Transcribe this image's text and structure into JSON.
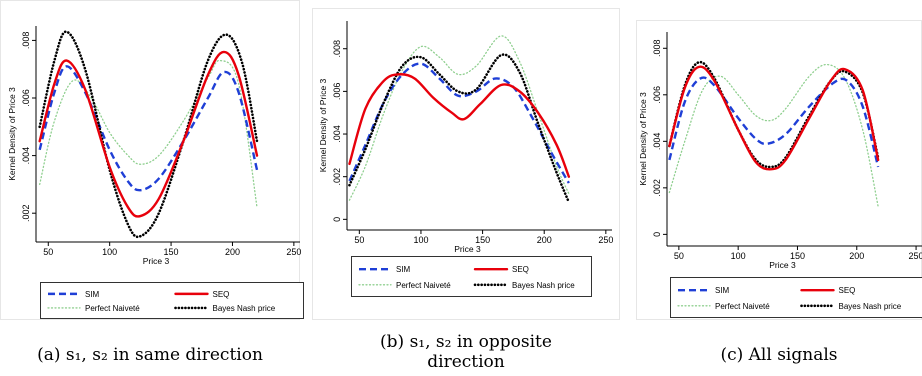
{
  "chart_data": [
    {
      "type": "line",
      "caption_lines": [
        "(a) s₁, s₂ in same direction"
      ],
      "xlabel": "Price 3",
      "ylabel": "Kernel Density of Price 3",
      "xlim": [
        40,
        255
      ],
      "ylim": [
        0.001,
        0.0085
      ],
      "xticks": [
        "50",
        "100",
        "150",
        "200",
        "250"
      ],
      "yticks": [
        ".002",
        ".004",
        ".006",
        ".008"
      ],
      "legend_position": "bottom",
      "series": [
        {
          "name": "SIM",
          "color": "#1f3fd6",
          "style": "dash",
          "points": [
            [
              43,
              0.0042
            ],
            [
              55,
              0.0062
            ],
            [
              65,
              0.0071
            ],
            [
              80,
              0.0062
            ],
            [
              100,
              0.0042
            ],
            [
              115,
              0.0031
            ],
            [
              125,
              0.0028
            ],
            [
              140,
              0.0032
            ],
            [
              160,
              0.0045
            ],
            [
              180,
              0.006
            ],
            [
              193,
              0.0069
            ],
            [
              205,
              0.0062
            ],
            [
              220,
              0.0035
            ]
          ]
        },
        {
          "name": "SEQ",
          "color": "#e8000b",
          "style": "solid",
          "points": [
            [
              43,
              0.0045
            ],
            [
              55,
              0.0065
            ],
            [
              65,
              0.0073
            ],
            [
              80,
              0.0063
            ],
            [
              100,
              0.0036
            ],
            [
              115,
              0.0022
            ],
            [
              125,
              0.0019
            ],
            [
              140,
              0.0025
            ],
            [
              160,
              0.0045
            ],
            [
              180,
              0.0068
            ],
            [
              193,
              0.0076
            ],
            [
              205,
              0.0068
            ],
            [
              220,
              0.004
            ]
          ]
        },
        {
          "name": "Perfect Naiveté",
          "color": "#8fcf8f",
          "style": "dot",
          "points": [
            [
              43,
              0.003
            ],
            [
              55,
              0.0052
            ],
            [
              70,
              0.0066
            ],
            [
              85,
              0.006
            ],
            [
              100,
              0.0048
            ],
            [
              115,
              0.004
            ],
            [
              125,
              0.0037
            ],
            [
              140,
              0.004
            ],
            [
              160,
              0.0052
            ],
            [
              180,
              0.0067
            ],
            [
              190,
              0.0073
            ],
            [
              205,
              0.0065
            ],
            [
              220,
              0.0022
            ]
          ]
        },
        {
          "name": "Bayes Nash price",
          "color": "#000000",
          "style": "densedot",
          "points": [
            [
              43,
              0.005
            ],
            [
              55,
              0.0073
            ],
            [
              65,
              0.0083
            ],
            [
              80,
              0.007
            ],
            [
              100,
              0.0035
            ],
            [
              115,
              0.0016
            ],
            [
              125,
              0.0012
            ],
            [
              140,
              0.002
            ],
            [
              160,
              0.0045
            ],
            [
              180,
              0.0073
            ],
            [
              195,
              0.0082
            ],
            [
              208,
              0.0072
            ],
            [
              220,
              0.0045
            ]
          ]
        }
      ]
    },
    {
      "type": "line",
      "caption_lines": [
        "(b) s₁, s₂ in opposite",
        "direction"
      ],
      "xlabel": "Price 3",
      "ylabel": "Kernel Density of Price 3",
      "xlim": [
        40,
        255
      ],
      "ylim": [
        -0.0005,
        0.0093
      ],
      "xticks": [
        "50",
        "100",
        "150",
        "200",
        "250"
      ],
      "yticks": [
        "0",
        ".002",
        ".004",
        ".006",
        ".008"
      ],
      "legend_position": "bottom",
      "series": [
        {
          "name": "SIM",
          "color": "#1f3fd6",
          "style": "dash",
          "points": [
            [
              42,
              0.0018
            ],
            [
              55,
              0.0035
            ],
            [
              70,
              0.0055
            ],
            [
              85,
              0.0068
            ],
            [
              100,
              0.0073
            ],
            [
              115,
              0.0066
            ],
            [
              130,
              0.0058
            ],
            [
              145,
              0.006
            ],
            [
              160,
              0.0066
            ],
            [
              175,
              0.0062
            ],
            [
              190,
              0.0048
            ],
            [
              205,
              0.0032
            ],
            [
              220,
              0.0017
            ]
          ]
        },
        {
          "name": "SEQ",
          "color": "#e8000b",
          "style": "solid",
          "points": [
            [
              42,
              0.0026
            ],
            [
              55,
              0.0052
            ],
            [
              70,
              0.0065
            ],
            [
              82,
              0.0068
            ],
            [
              95,
              0.0066
            ],
            [
              110,
              0.0057
            ],
            [
              125,
              0.005
            ],
            [
              135,
              0.0047
            ],
            [
              148,
              0.0054
            ],
            [
              165,
              0.0063
            ],
            [
              180,
              0.006
            ],
            [
              195,
              0.005
            ],
            [
              210,
              0.0035
            ],
            [
              220,
              0.002
            ]
          ]
        },
        {
          "name": "Perfect Naiveté",
          "color": "#8fcf8f",
          "style": "dot",
          "points": [
            [
              42,
              0.0009
            ],
            [
              55,
              0.0025
            ],
            [
              70,
              0.005
            ],
            [
              85,
              0.007
            ],
            [
              100,
              0.0081
            ],
            [
              115,
              0.0076
            ],
            [
              130,
              0.0068
            ],
            [
              145,
              0.0072
            ],
            [
              165,
              0.0086
            ],
            [
              180,
              0.0074
            ],
            [
              195,
              0.005
            ],
            [
              210,
              0.0025
            ],
            [
              220,
              0.0012
            ]
          ]
        },
        {
          "name": "Bayes Nash price",
          "color": "#000000",
          "style": "densedot",
          "points": [
            [
              42,
              0.0016
            ],
            [
              55,
              0.0033
            ],
            [
              70,
              0.0055
            ],
            [
              85,
              0.0072
            ],
            [
              100,
              0.0076
            ],
            [
              115,
              0.0068
            ],
            [
              130,
              0.006
            ],
            [
              145,
              0.0061
            ],
            [
              165,
              0.0077
            ],
            [
              180,
              0.0069
            ],
            [
              195,
              0.0045
            ],
            [
              210,
              0.0022
            ],
            [
              220,
              0.0008
            ]
          ]
        }
      ]
    },
    {
      "type": "line",
      "caption_lines": [
        "(c) All signals"
      ],
      "xlabel": "Price 3",
      "ylabel": "Kernel Density of Price 3",
      "xlim": [
        40,
        255
      ],
      "ylim": [
        -0.0005,
        0.0087
      ],
      "xticks": [
        "50",
        "100",
        "150",
        "200",
        "250"
      ],
      "yticks": [
        "0",
        ".002",
        ".004",
        ".006",
        ".008"
      ],
      "legend_position": "bottom",
      "series": [
        {
          "name": "SIM",
          "color": "#1f3fd6",
          "style": "dash",
          "points": [
            [
              42,
              0.0032
            ],
            [
              55,
              0.0057
            ],
            [
              68,
              0.0067
            ],
            [
              80,
              0.0064
            ],
            [
              100,
              0.005
            ],
            [
              115,
              0.0041
            ],
            [
              125,
              0.0039
            ],
            [
              140,
              0.0043
            ],
            [
              160,
              0.0055
            ],
            [
              180,
              0.0065
            ],
            [
              192,
              0.0066
            ],
            [
              205,
              0.0055
            ],
            [
              218,
              0.0029
            ]
          ]
        },
        {
          "name": "SEQ",
          "color": "#e8000b",
          "style": "solid",
          "points": [
            [
              42,
              0.0038
            ],
            [
              55,
              0.0063
            ],
            [
              67,
              0.0072
            ],
            [
              80,
              0.0066
            ],
            [
              100,
              0.0045
            ],
            [
              115,
              0.0031
            ],
            [
              128,
              0.0028
            ],
            [
              140,
              0.0032
            ],
            [
              160,
              0.005
            ],
            [
              178,
              0.0066
            ],
            [
              190,
              0.0071
            ],
            [
              205,
              0.0062
            ],
            [
              218,
              0.0032
            ]
          ]
        },
        {
          "name": "Perfect Naiveté",
          "color": "#8fcf8f",
          "style": "dot",
          "points": [
            [
              42,
              0.0018
            ],
            [
              55,
              0.004
            ],
            [
              70,
              0.0062
            ],
            [
              85,
              0.0068
            ],
            [
              100,
              0.006
            ],
            [
              115,
              0.0051
            ],
            [
              128,
              0.0049
            ],
            [
              140,
              0.0054
            ],
            [
              160,
              0.0068
            ],
            [
              175,
              0.0073
            ],
            [
              190,
              0.0067
            ],
            [
              205,
              0.0045
            ],
            [
              218,
              0.0012
            ]
          ]
        },
        {
          "name": "Bayes Nash price",
          "color": "#000000",
          "style": "densedot",
          "points": [
            [
              42,
              0.0038
            ],
            [
              55,
              0.0064
            ],
            [
              67,
              0.0074
            ],
            [
              80,
              0.0067
            ],
            [
              100,
              0.0045
            ],
            [
              115,
              0.0032
            ],
            [
              128,
              0.0029
            ],
            [
              140,
              0.0033
            ],
            [
              160,
              0.0051
            ],
            [
              178,
              0.0066
            ],
            [
              190,
              0.007
            ],
            [
              205,
              0.0061
            ],
            [
              218,
              0.0033
            ]
          ]
        }
      ]
    }
  ]
}
